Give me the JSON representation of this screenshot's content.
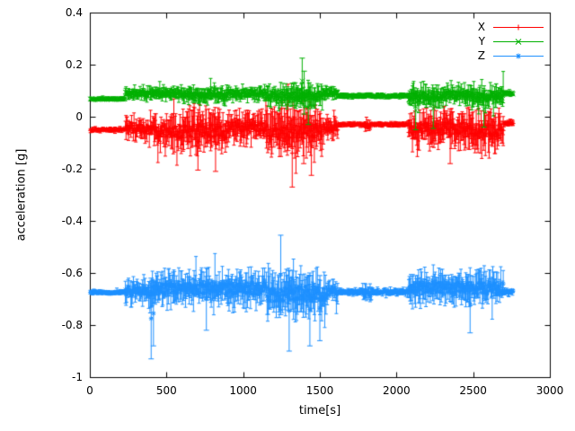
{
  "chart_data": {
    "type": "scatter",
    "style": "points-with-errorbars",
    "title": "",
    "xlabel": "time[s]",
    "ylabel": "acceleration [g]",
    "xlim": [
      0,
      3000
    ],
    "ylim": [
      -1,
      0.4
    ],
    "grid": false,
    "legend_position": "top-right-inside",
    "xticks": [
      0,
      500,
      1000,
      1500,
      2000,
      2500,
      3000
    ],
    "xtick_labels": [
      "0",
      "500",
      "1000",
      "1500",
      "2000",
      "2500",
      "3000"
    ],
    "yticks": [
      0.4,
      0.2,
      0,
      -0.2,
      -0.4,
      -0.6,
      -0.8,
      -1
    ],
    "ytick_labels": [
      "0.4",
      "0.2",
      "0",
      "-0.2",
      "-0.4",
      "-0.6",
      "-0.8",
      "-1"
    ],
    "sample_step_s": 4,
    "t_start": 4,
    "t_end": 2762,
    "series": [
      {
        "name": "X",
        "color": "#ff0000",
        "marker": "plus",
        "segments": [
          [
            0,
            230,
            -0.05,
            0.01
          ],
          [
            230,
            420,
            -0.045,
            0.045
          ],
          [
            420,
            560,
            -0.055,
            0.075
          ],
          [
            560,
            900,
            -0.055,
            0.09
          ],
          [
            900,
            1150,
            -0.04,
            0.065
          ],
          [
            1150,
            1340,
            -0.06,
            0.1
          ],
          [
            1340,
            1520,
            -0.055,
            0.095
          ],
          [
            1520,
            1620,
            -0.04,
            0.045
          ],
          [
            1620,
            1790,
            -0.03,
            0.01
          ],
          [
            1790,
            1830,
            -0.035,
            0.03
          ],
          [
            1830,
            2080,
            -0.03,
            0.01
          ],
          [
            2080,
            2430,
            -0.045,
            0.08
          ],
          [
            2430,
            2700,
            -0.05,
            0.085
          ],
          [
            2700,
            2762,
            -0.025,
            0.012
          ]
        ],
        "spikes": [
          [
            705,
            -0.205,
            0.015
          ],
          [
            820,
            -0.21,
            0.0
          ],
          [
            1292,
            -0.13,
            0.125
          ],
          [
            1320,
            -0.27,
            -0.01
          ],
          [
            1395,
            -0.18,
            0.06
          ],
          [
            1445,
            -0.225,
            0.0
          ],
          [
            2350,
            -0.18,
            0.03
          ]
        ]
      },
      {
        "name": "Y",
        "color": "#00b000",
        "marker": "x",
        "segments": [
          [
            0,
            230,
            0.068,
            0.008
          ],
          [
            230,
            600,
            0.09,
            0.03
          ],
          [
            600,
            900,
            0.085,
            0.035
          ],
          [
            900,
            1150,
            0.09,
            0.03
          ],
          [
            1150,
            1520,
            0.08,
            0.045
          ],
          [
            1520,
            1620,
            0.09,
            0.025
          ],
          [
            1620,
            2080,
            0.08,
            0.01
          ],
          [
            2080,
            2300,
            0.075,
            0.05
          ],
          [
            2300,
            2450,
            0.085,
            0.045
          ],
          [
            2450,
            2700,
            0.08,
            0.05
          ],
          [
            2700,
            2762,
            0.09,
            0.012
          ]
        ],
        "spikes": [
          [
            1385,
            0.05,
            0.225
          ],
          [
            1398,
            0.01,
            0.175
          ],
          [
            1425,
            -0.03,
            0.1
          ],
          [
            2125,
            -0.05,
            0.1
          ],
          [
            2240,
            -0.045,
            0.11
          ],
          [
            2570,
            -0.04,
            0.1
          ]
        ]
      },
      {
        "name": "Z",
        "color": "#1e90ff",
        "marker": "asterisk",
        "segments": [
          [
            0,
            230,
            -0.675,
            0.01
          ],
          [
            230,
            420,
            -0.67,
            0.055
          ],
          [
            420,
            900,
            -0.66,
            0.07
          ],
          [
            900,
            1150,
            -0.66,
            0.08
          ],
          [
            1150,
            1340,
            -0.68,
            0.095
          ],
          [
            1340,
            1550,
            -0.68,
            0.09
          ],
          [
            1550,
            1620,
            -0.67,
            0.045
          ],
          [
            1620,
            1780,
            -0.673,
            0.015
          ],
          [
            1780,
            1840,
            -0.68,
            0.035
          ],
          [
            1840,
            2080,
            -0.673,
            0.015
          ],
          [
            2080,
            2450,
            -0.655,
            0.07
          ],
          [
            2450,
            2700,
            -0.66,
            0.075
          ],
          [
            2700,
            2762,
            -0.67,
            0.015
          ]
        ],
        "spikes": [
          [
            400,
            -0.93,
            -0.62
          ],
          [
            415,
            -0.88,
            -0.63
          ],
          [
            760,
            -0.82,
            -0.58
          ],
          [
            1245,
            -0.76,
            -0.455
          ],
          [
            1300,
            -0.9,
            -0.59
          ],
          [
            1435,
            -0.88,
            -0.6
          ],
          [
            1500,
            -0.86,
            -0.61
          ],
          [
            2480,
            -0.83,
            -0.61
          ]
        ]
      }
    ]
  }
}
